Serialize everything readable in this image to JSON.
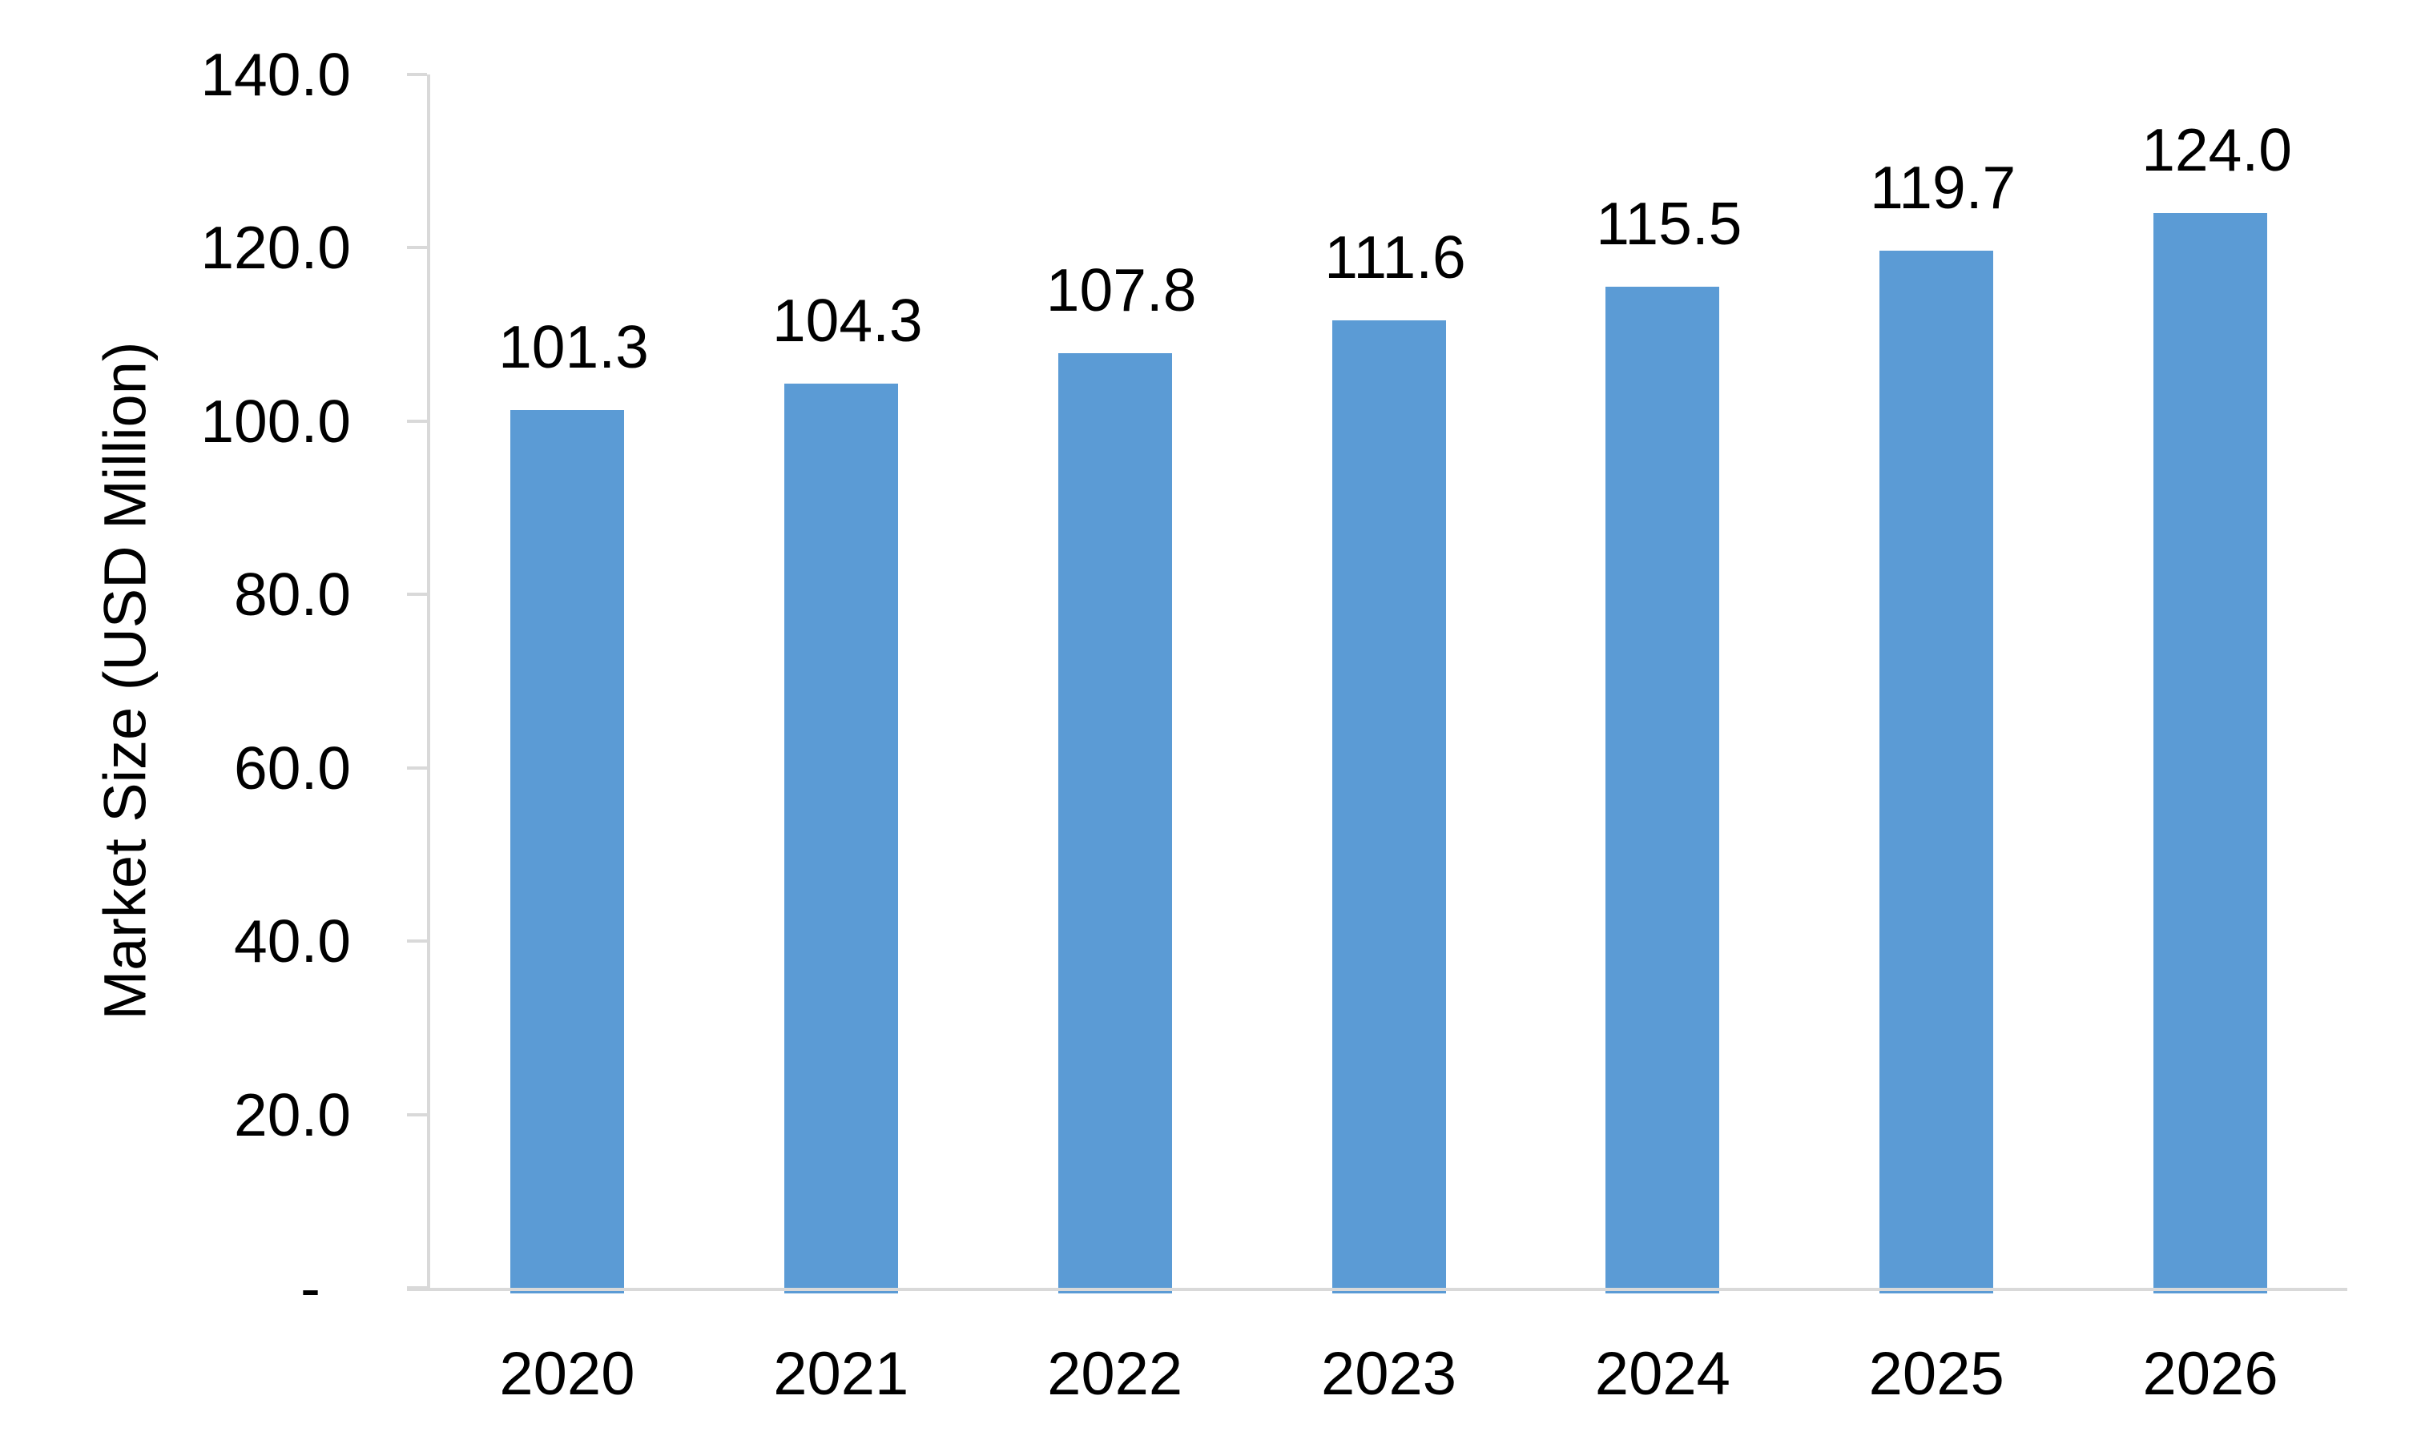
{
  "chart_data": {
    "type": "bar",
    "categories": [
      "2020",
      "2021",
      "2022",
      "2023",
      "2024",
      "2025",
      "2026"
    ],
    "values": [
      101.3,
      104.3,
      107.8,
      111.6,
      115.5,
      119.7,
      124.0
    ],
    "data_labels": [
      "101.3",
      "104.3",
      "107.8",
      "111.6",
      "115.5",
      "119.7",
      "124.0"
    ],
    "title": "",
    "xlabel": "",
    "ylabel": "Market Size (USD Million)",
    "ylim": [
      0,
      140
    ],
    "ytick_values": [
      140,
      120,
      100,
      80,
      60,
      40,
      20,
      0
    ],
    "ytick_labels": [
      "140.0",
      "120.0",
      "100.0",
      "80.0",
      "60.0",
      "40.0",
      "20.0",
      "-"
    ],
    "grid": false,
    "legend": "none",
    "bar_color": "#5B9BD5",
    "axis_color": "#D9D9D9",
    "label_color": "#000000"
  }
}
